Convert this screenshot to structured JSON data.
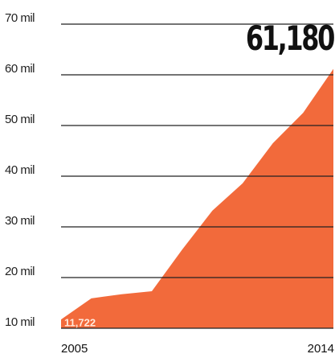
{
  "chart_data": {
    "type": "area",
    "x": [
      2005,
      2006,
      2007,
      2008,
      2009,
      2010,
      2011,
      2012,
      2013,
      2014
    ],
    "series": [
      {
        "color": "#f26a3b",
        "values": [
          11722,
          15900,
          16700,
          17300,
          25500,
          33200,
          38600,
          46500,
          52500,
          61180
        ],
        "value_labels": [
          "11,722",
          null,
          null,
          null,
          null,
          null,
          null,
          null,
          null,
          "61,180"
        ]
      }
    ],
    "xlim": [
      2005,
      2014
    ],
    "xticks": [
      2005,
      2014
    ],
    "ylim": [
      10000,
      70000
    ],
    "yticks": [
      {
        "value": 10000,
        "label": "10 mil"
      },
      {
        "value": 20000,
        "label": "20 mil"
      },
      {
        "value": 30000,
        "label": "30 mil"
      },
      {
        "value": 40000,
        "label": "40 mil"
      },
      {
        "value": 50000,
        "label": "50 mil"
      },
      {
        "value": 60000,
        "label": "60 mil"
      },
      {
        "value": 70000,
        "label": "70 mil"
      }
    ],
    "grid": true
  }
}
